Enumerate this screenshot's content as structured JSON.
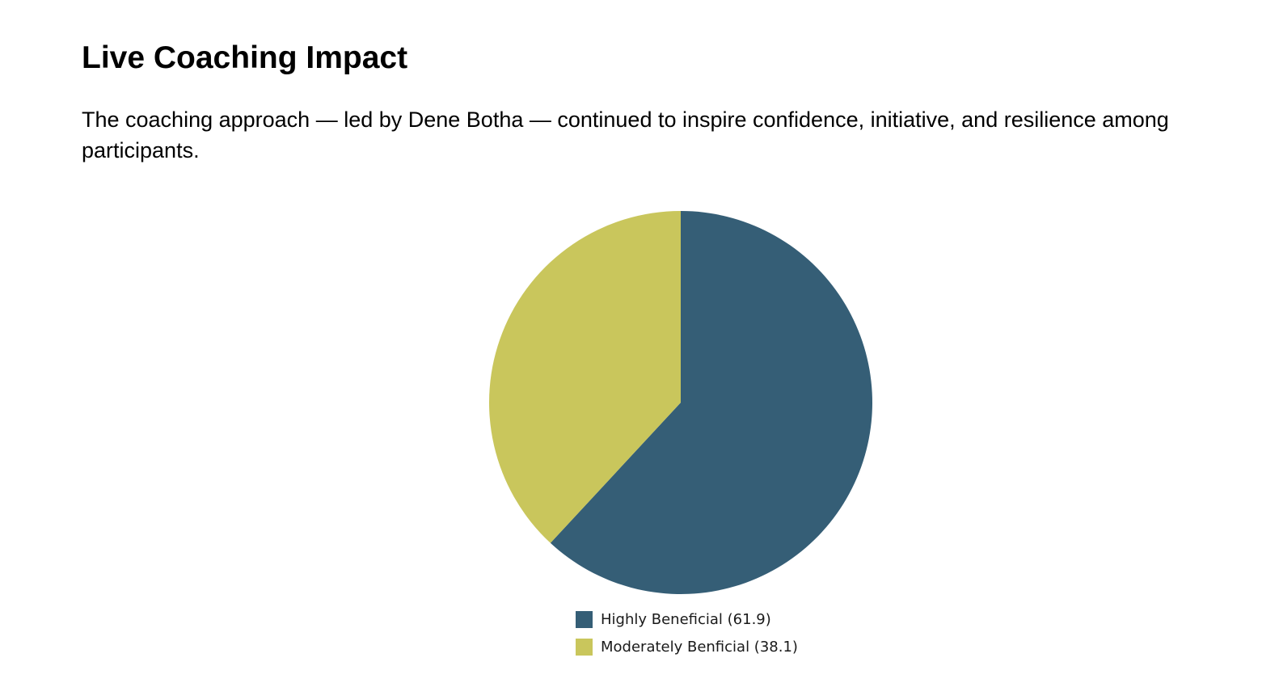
{
  "heading": {
    "title": "Live Coaching Impact",
    "description": "The coaching approach — led by Dene Botha — continued to inspire confidence, initiative, and resilience among participants."
  },
  "chart_data": {
    "type": "pie",
    "title": "",
    "slices": [
      {
        "label": "Highly Beneficial",
        "value": 61.9,
        "legend_label": "Highly Beneficial (61.9)",
        "color": "#355e76"
      },
      {
        "label": "Moderately Benficial",
        "value": 38.1,
        "legend_label": "Moderately Benficial (38.1)",
        "color": "#c9c65c"
      }
    ],
    "start_angle": "12 o'clock",
    "direction": "clockwise",
    "legend_position": "bottom-center"
  }
}
